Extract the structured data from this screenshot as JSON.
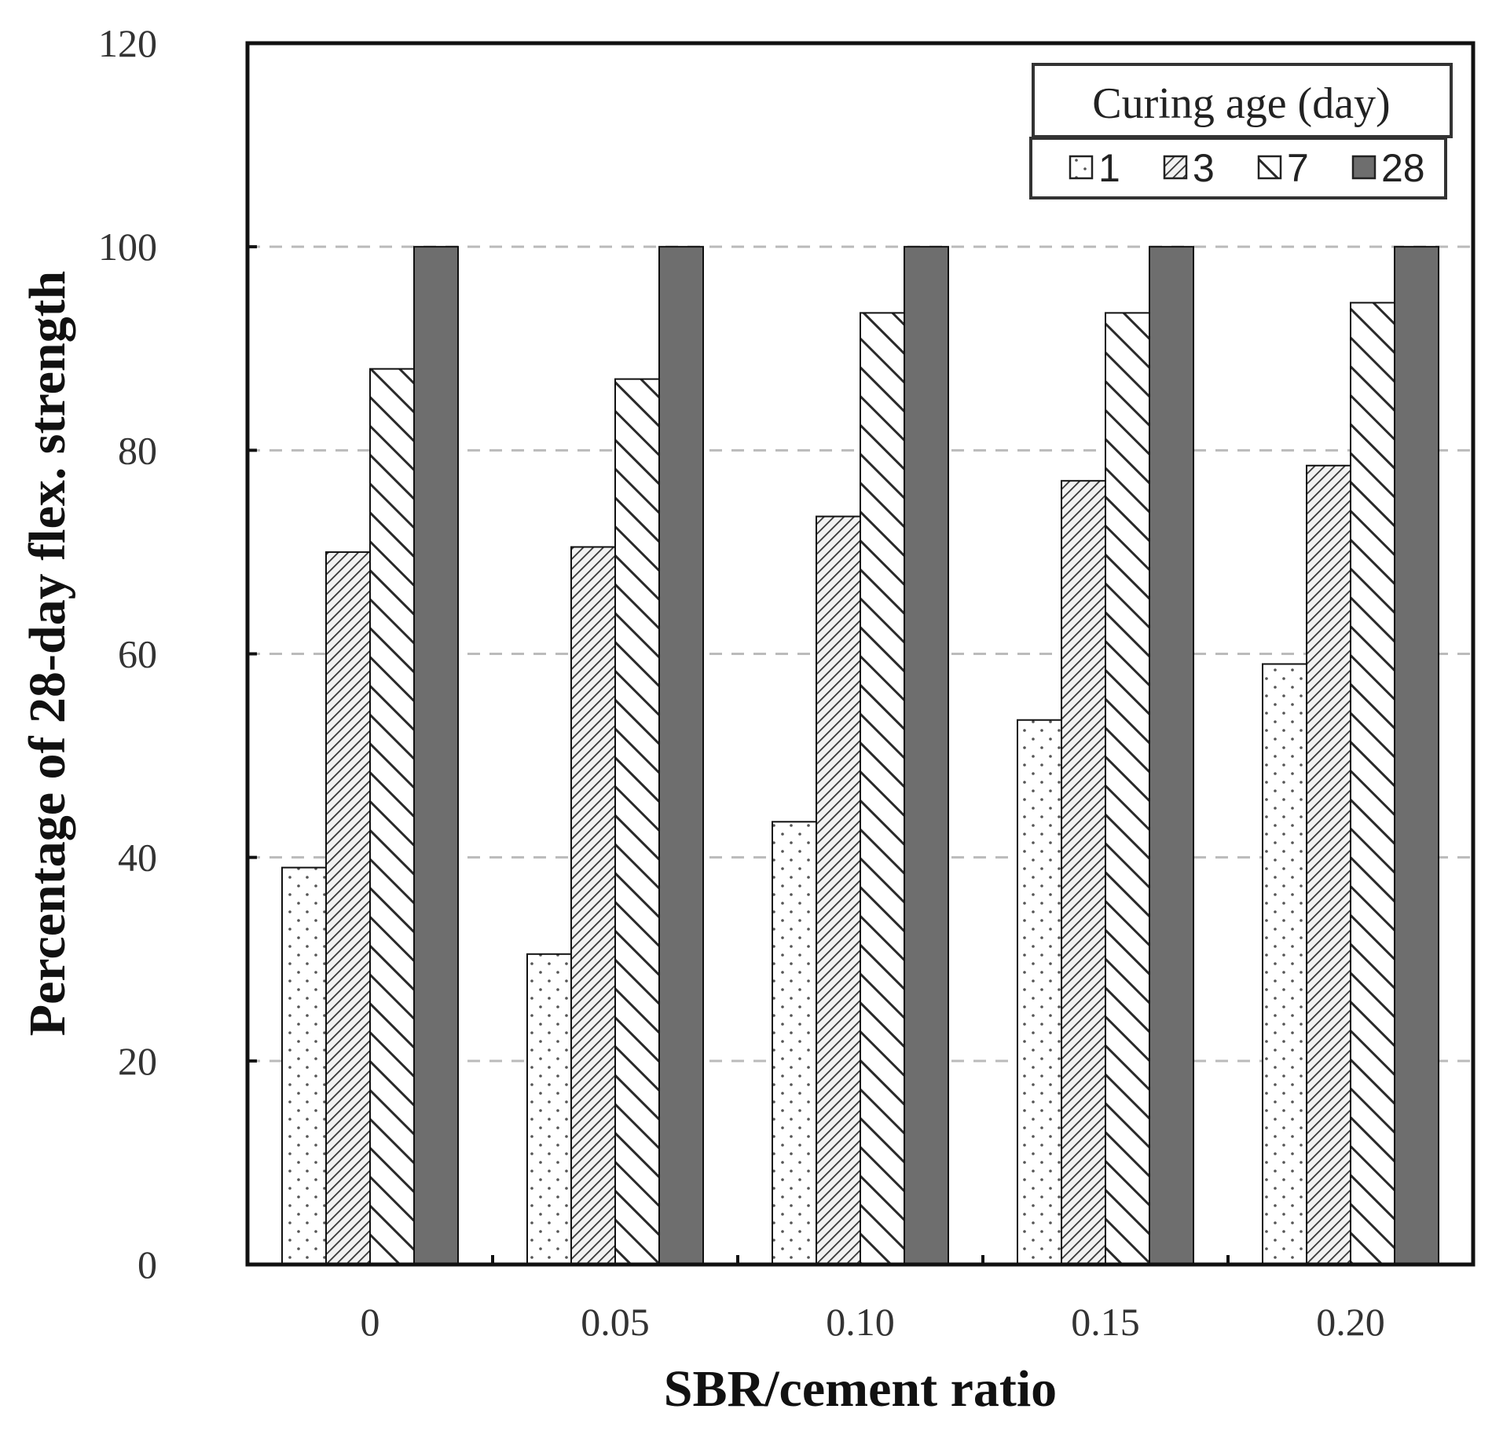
{
  "chart_data": {
    "type": "bar",
    "title": "",
    "xlabel": "SBR/cement ratio",
    "ylabel": "Percentage of 28-day flex. strength",
    "categories": [
      "0",
      "0.05",
      "0.10",
      "0.15",
      "0.20"
    ],
    "ylim": [
      0,
      120
    ],
    "yticks": [
      "0",
      "20",
      "40",
      "60",
      "80",
      "100",
      "120"
    ],
    "grid": "horizontal dashed",
    "legend": {
      "title": "Curing age (day)",
      "placement": "top-right"
    },
    "series": [
      {
        "name": "1",
        "pattern": "dots",
        "values": [
          39,
          30.5,
          43.5,
          53.5,
          59
        ]
      },
      {
        "name": "3",
        "pattern": "dense-hatch",
        "values": [
          70,
          70.5,
          73.5,
          77,
          78.5
        ]
      },
      {
        "name": "7",
        "pattern": "diagonal-hatch",
        "values": [
          88,
          87,
          93.5,
          93.5,
          94.5
        ]
      },
      {
        "name": "28",
        "pattern": "solid",
        "values": [
          100,
          100,
          100,
          100,
          100
        ]
      }
    ],
    "colors": {
      "frame": "#111111",
      "grid": "#bbbbbb",
      "solid_fill": "#6e6e6e",
      "hatch": "#333333"
    }
  }
}
